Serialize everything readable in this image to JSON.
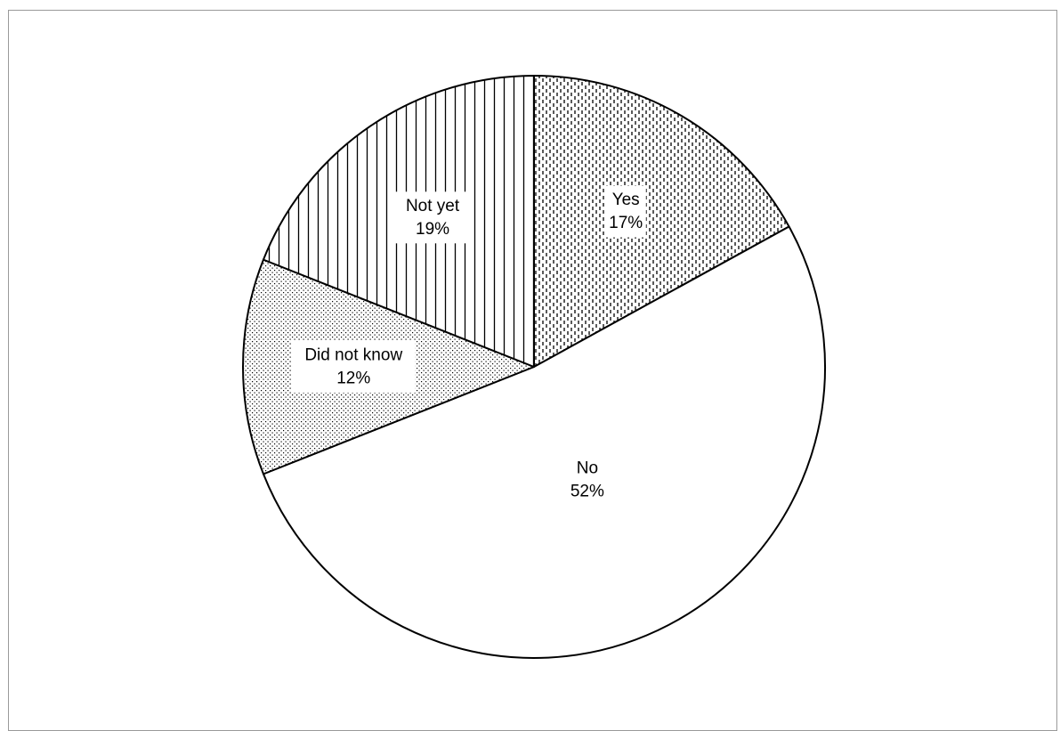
{
  "chart_data": {
    "type": "pie",
    "categories": [
      "Yes",
      "No",
      "Did not know",
      "Not yet"
    ],
    "values": [
      17,
      52,
      12,
      19
    ],
    "value_labels": [
      "17%",
      "52%",
      "12%",
      "19%"
    ],
    "start_angle_deg": 0,
    "direction": "clockwise",
    "legend": "none",
    "fills": [
      "dashed-vertical",
      "white",
      "dotted",
      "vertical-lines"
    ],
    "colors": {
      "outline": "#000000",
      "frame": "#9a9a9a",
      "background": "#ffffff"
    }
  }
}
